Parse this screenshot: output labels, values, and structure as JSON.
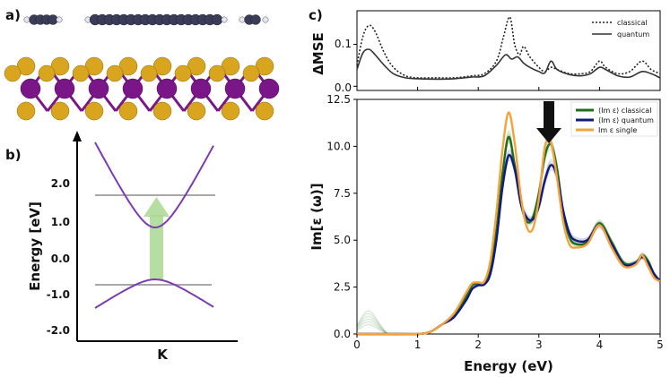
{
  "panels": {
    "a": "a)",
    "b": "b)",
    "c": "c)"
  },
  "colors": {
    "carbon": "#3b3d58",
    "hydrogen": "#e6e6ee",
    "sulfur": "#d9a51f",
    "metal": "#7a1688",
    "band": "#7b3bb2",
    "level": "#a8a8a8",
    "arrow": "#a9d890",
    "classical": "#1f6e1a",
    "quantum": "#121a7e",
    "single": "#f4a23c",
    "mse": "#222222"
  },
  "panel_b": {
    "ylabel": "Energy [eV]",
    "xlabel": "K",
    "yticks": [
      "2.0",
      "1.0",
      "0.0",
      "-1.0",
      "-2.0"
    ]
  },
  "chart_data": [
    {
      "type": "line",
      "panel": "c-top",
      "ylabel": "ΔMSE",
      "xlim": [
        0,
        5
      ],
      "ylim": [
        -0.01,
        0.18
      ],
      "yticks": [
        "0.0",
        "0.1"
      ],
      "series": [
        {
          "name": "classical",
          "style": "dotted",
          "x": [
            0,
            0.1,
            0.2,
            0.3,
            0.45,
            0.6,
            0.8,
            1.0,
            1.3,
            1.6,
            1.9,
            2.1,
            2.3,
            2.42,
            2.52,
            2.6,
            2.68,
            2.75,
            2.85,
            3.0,
            3.1,
            3.2,
            3.3,
            3.5,
            3.7,
            3.85,
            4.0,
            4.1,
            4.3,
            4.5,
            4.7,
            4.85,
            5.0
          ],
          "y": [
            0.05,
            0.12,
            0.145,
            0.13,
            0.08,
            0.045,
            0.025,
            0.02,
            0.02,
            0.02,
            0.025,
            0.03,
            0.06,
            0.12,
            0.165,
            0.1,
            0.075,
            0.095,
            0.07,
            0.045,
            0.035,
            0.045,
            0.04,
            0.03,
            0.03,
            0.035,
            0.06,
            0.045,
            0.03,
            0.035,
            0.06,
            0.04,
            0.03
          ]
        },
        {
          "name": "quantum",
          "style": "solid",
          "x": [
            0,
            0.1,
            0.2,
            0.3,
            0.45,
            0.6,
            0.8,
            1.0,
            1.3,
            1.6,
            1.9,
            2.1,
            2.3,
            2.45,
            2.55,
            2.65,
            2.75,
            2.85,
            3.0,
            3.1,
            3.2,
            3.3,
            3.5,
            3.7,
            3.85,
            4.0,
            4.1,
            4.3,
            4.5,
            4.7,
            4.85,
            5.0
          ],
          "y": [
            0.04,
            0.08,
            0.088,
            0.075,
            0.05,
            0.03,
            0.02,
            0.018,
            0.017,
            0.018,
            0.022,
            0.025,
            0.05,
            0.075,
            0.065,
            0.07,
            0.055,
            0.045,
            0.035,
            0.032,
            0.06,
            0.04,
            0.028,
            0.025,
            0.03,
            0.045,
            0.04,
            0.025,
            0.022,
            0.035,
            0.03,
            0.02
          ]
        }
      ],
      "legend": [
        "classical",
        "quantum"
      ]
    },
    {
      "type": "line",
      "panel": "c-bottom",
      "xlabel": "Energy (eV)",
      "ylabel": "Im[ε (ω)]",
      "xlim": [
        0,
        5
      ],
      "ylim": [
        0,
        12.5
      ],
      "xticks": [
        "0",
        "1",
        "2",
        "3",
        "4",
        "5"
      ],
      "yticks": [
        "0.0",
        "2.5",
        "5.0",
        "7.5",
        "10.0",
        "12.5"
      ],
      "legend": [
        "⟨Im ε⟩ classical",
        "⟨Im ε⟩ quantum",
        "Im ε single"
      ],
      "series": [
        {
          "name": "⟨Im ε⟩ classical",
          "x": [
            0,
            0.2,
            0.5,
            0.8,
            1.0,
            1.2,
            1.4,
            1.6,
            1.8,
            1.9,
            2.0,
            2.1,
            2.2,
            2.3,
            2.4,
            2.5,
            2.6,
            2.7,
            2.8,
            2.9,
            3.0,
            3.1,
            3.2,
            3.3,
            3.4,
            3.5,
            3.6,
            3.8,
            4.0,
            4.2,
            4.4,
            4.6,
            4.7,
            4.8,
            4.9,
            5.0
          ],
          "y": [
            0,
            0,
            0,
            0,
            0,
            0.1,
            0.5,
            1.0,
            2.0,
            2.6,
            2.7,
            2.75,
            3.5,
            5.5,
            8.5,
            10.5,
            9.0,
            7.0,
            6.0,
            6.2,
            7.5,
            9.5,
            10.1,
            8.8,
            6.5,
            5.2,
            4.8,
            4.9,
            5.9,
            4.9,
            3.8,
            3.8,
            4.2,
            3.9,
            3.2,
            2.8
          ]
        },
        {
          "name": "⟨Im ε⟩ quantum",
          "x": [
            0,
            0.2,
            0.5,
            0.8,
            1.0,
            1.2,
            1.4,
            1.6,
            1.8,
            1.9,
            2.0,
            2.1,
            2.2,
            2.3,
            2.4,
            2.5,
            2.6,
            2.7,
            2.8,
            2.9,
            3.0,
            3.1,
            3.2,
            3.3,
            3.4,
            3.5,
            3.6,
            3.8,
            4.0,
            4.2,
            4.4,
            4.6,
            4.7,
            4.8,
            4.9,
            5.0
          ],
          "y": [
            0,
            0,
            0,
            0,
            0,
            0.1,
            0.5,
            0.9,
            1.8,
            2.4,
            2.6,
            2.65,
            3.2,
            5.0,
            7.8,
            9.5,
            8.8,
            7.0,
            6.2,
            6.1,
            6.8,
            8.2,
            9.0,
            8.4,
            6.6,
            5.4,
            5.0,
            5.0,
            5.8,
            4.8,
            3.7,
            3.8,
            4.1,
            3.8,
            3.2,
            2.8
          ]
        },
        {
          "name": "Im ε single",
          "x": [
            0,
            0.2,
            0.5,
            0.8,
            1.0,
            1.2,
            1.4,
            1.6,
            1.8,
            1.9,
            2.0,
            2.1,
            2.2,
            2.3,
            2.4,
            2.5,
            2.6,
            2.7,
            2.8,
            2.9,
            3.0,
            3.1,
            3.2,
            3.3,
            3.4,
            3.5,
            3.6,
            3.8,
            4.0,
            4.2,
            4.4,
            4.6,
            4.7,
            4.8,
            4.9,
            5.0
          ],
          "y": [
            0,
            0,
            0,
            0,
            0,
            0.1,
            0.5,
            1.1,
            2.2,
            2.7,
            2.75,
            2.8,
            3.9,
            6.5,
            9.8,
            11.8,
            10.2,
            7.4,
            5.7,
            5.6,
            7.2,
            10.0,
            10.2,
            8.3,
            6.0,
            4.8,
            4.6,
            4.8,
            5.8,
            4.6,
            3.6,
            3.7,
            4.2,
            3.6,
            3.0,
            2.8
          ]
        }
      ]
    }
  ]
}
